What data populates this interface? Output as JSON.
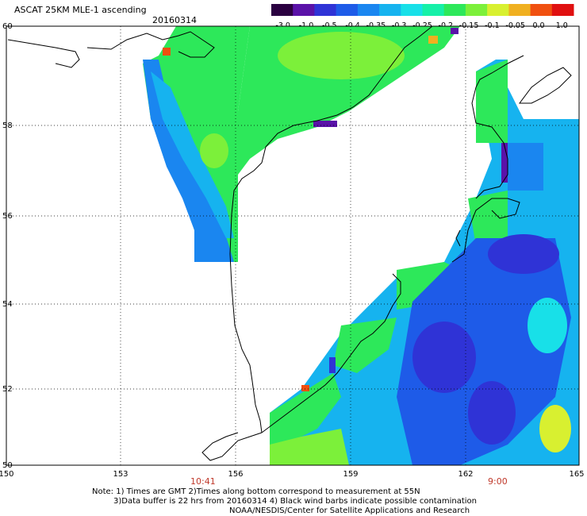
{
  "title": "ASCAT 25KM MLE-1 ascending",
  "date": "20160314",
  "colorbar": {
    "labels": [
      "-3.0",
      "-1.0",
      "-0.5",
      "-0.4",
      "-0.35",
      "-0.3",
      "-0.25",
      "-0.2",
      "-0.15",
      "-0.1",
      "-0.05",
      "0.0",
      "1.0"
    ],
    "colors": [
      "#2a0040",
      "#5a12a8",
      "#2f33d6",
      "#1e5be8",
      "#1a86f0",
      "#16b3ef",
      "#18e0e8",
      "#16f0a8",
      "#2de85a",
      "#7cf03a",
      "#d8f030",
      "#f0b020",
      "#f05010",
      "#e01010"
    ]
  },
  "map": {
    "lat_labels": [
      "60",
      "58",
      "56",
      "54",
      "52",
      "50"
    ],
    "lon_labels": [
      "150",
      "153",
      "156",
      "159",
      "162",
      "165"
    ]
  },
  "times": [
    {
      "label": "10:41",
      "lon": 155.2
    },
    {
      "label": "9:00",
      "lon": 162.6
    }
  ],
  "notes": {
    "line1": "Note: 1) Times are GMT 2)Times along bottom correspond to measurement at 55N",
    "line2": "3)Data buffer is 22 hrs from 20160314 4) Black wind barbs indicate possible contamination",
    "line3": "NOAA/NESDIS/Center for Satellite Applications and Research"
  }
}
